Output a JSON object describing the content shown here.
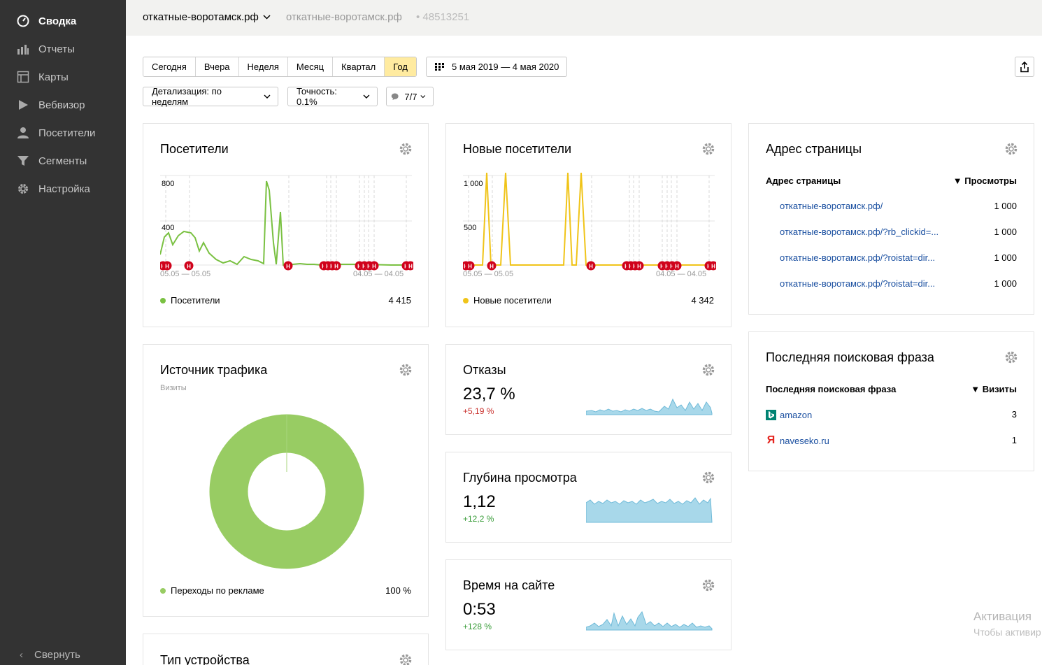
{
  "sidebar": {
    "items": [
      {
        "label": "Сводка",
        "icon": "dashboard-icon",
        "active": true
      },
      {
        "label": "Отчеты",
        "icon": "bar-chart-icon"
      },
      {
        "label": "Карты",
        "icon": "map-icon"
      },
      {
        "label": "Вебвизор",
        "icon": "play-icon"
      },
      {
        "label": "Посетители",
        "icon": "person-icon"
      },
      {
        "label": "Сегменты",
        "icon": "funnel-icon"
      },
      {
        "label": "Настройка",
        "icon": "gear-icon"
      }
    ],
    "collapse_label": "Свернуть"
  },
  "header": {
    "counter_select": "откатные-воротамск.рф",
    "counter_name": "откатные-воротамск.рф",
    "counter_id": "• 48513251"
  },
  "toolbar": {
    "periods": [
      "Сегодня",
      "Вчера",
      "Неделя",
      "Месяц",
      "Квартал",
      "Год"
    ],
    "active_period": "Год",
    "date_range": "5 мая 2019 — 4 мая 2020",
    "detail": "Детализация: по неделям",
    "accuracy": "Точность: 0.1%",
    "segments": "7/7"
  },
  "widgets": {
    "visitors": {
      "title": "Посетители",
      "y_ticks": [
        "800",
        "400"
      ],
      "date_start": "05.05 — 05.05",
      "date_end": "04.05 — 04.05",
      "legend": "Посетители",
      "total": "4 415",
      "color": "#7ac142"
    },
    "new_visitors": {
      "title": "Новые посетители",
      "y_ticks": [
        "1 000",
        "500"
      ],
      "date_start": "05.05 — 05.05",
      "date_end": "04.05 — 04.05",
      "legend": "Новые посетители",
      "total": "4 342",
      "color": "#f0c419"
    },
    "page_address": {
      "title": "Адрес страницы",
      "col_left": "Адрес страницы",
      "col_right": "▼ Просмотры",
      "rows": [
        {
          "url": "откатные-воротамск.рф/",
          "value": "1 000"
        },
        {
          "url": "откатные-воротамск.рф/?rb_clickid=...",
          "value": "1 000"
        },
        {
          "url": "откатные-воротамск.рф/?roistat=dir...",
          "value": "1 000"
        },
        {
          "url": "откатные-воротамск.рф/?roistat=dir...",
          "value": "1 000"
        }
      ]
    },
    "traffic_source": {
      "title": "Источник трафика",
      "subtitle": "Визиты",
      "legend": "Переходы по рекламе",
      "value": "100 %",
      "color": "#98cc63"
    },
    "bounce": {
      "title": "Отказы",
      "value": "23,7 %",
      "delta": "+5,19 %"
    },
    "depth": {
      "title": "Глубина просмотра",
      "value": "1,12",
      "delta": "+12,2 %"
    },
    "time": {
      "title": "Время на сайте",
      "value": "0:53",
      "delta": "+128 %"
    },
    "search_phrase": {
      "title": "Последняя поисковая фраза",
      "col_left": "Последняя поисковая фраза",
      "col_right": "▼ Визиты",
      "rows": [
        {
          "label": "amazon",
          "value": "3",
          "icon": "bing-icon"
        },
        {
          "label": "naveseko.ru",
          "value": "1",
          "icon": "yandex-icon"
        }
      ]
    },
    "device": {
      "title": "Тип устройства"
    }
  },
  "watermark": {
    "line1": "Активация",
    "line2": "Чтобы активир"
  }
}
